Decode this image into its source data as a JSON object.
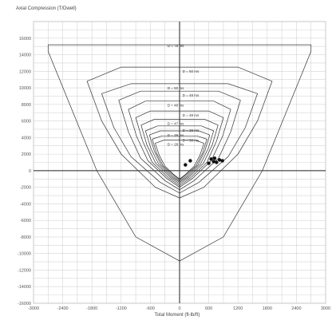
{
  "chart_data": {
    "type": "line",
    "title": "",
    "ylabel": "Axial Compression (T/Dwell)",
    "xlabel": "Total Moment (ft-lb/ft)",
    "xlim": [
      -3000,
      3000
    ],
    "ylim": [
      -16000,
      18000
    ],
    "x_ticks": [
      -3000,
      -2400,
      -1800,
      -1200,
      -600,
      0,
      600,
      1200,
      1800,
      2400,
      3000
    ],
    "y_ticks": [
      -16000,
      -14000,
      -12000,
      -10000,
      -8000,
      -6000,
      -4000,
      -2000,
      0,
      2000,
      4000,
      6000,
      8000,
      10000,
      12000,
      14000,
      16000
    ],
    "grid": true,
    "series": [
      {
        "label": "D = 78 ms",
        "x": [
          -2700,
          2700,
          2700,
          1700,
          900,
          0,
          -900,
          -1700,
          -2700,
          -2700
        ],
        "y": [
          15200,
          15200,
          14400,
          0,
          -8000,
          -10900,
          -8000,
          0,
          14400,
          15200
        ]
      },
      {
        "label": "D = 50 ms",
        "x": [
          -1200,
          1200,
          1900,
          1600,
          1200,
          500,
          0,
          -500,
          -1200,
          -1600,
          -1900,
          -1200
        ],
        "y": [
          12500,
          12500,
          10800,
          6000,
          2000,
          -2000,
          -3300,
          -2000,
          2000,
          6000,
          10800,
          12500
        ]
      },
      {
        "label": "D = 50 ms",
        "x": [
          -1000,
          1000,
          1600,
          1350,
          1000,
          400,
          0,
          -400,
          -1000,
          -1350,
          -1600,
          -1000
        ],
        "y": [
          10500,
          10500,
          9300,
          5200,
          1700,
          -1400,
          -2700,
          -1400,
          1700,
          5200,
          9300,
          10500
        ]
      },
      {
        "label": "D = 48 ms",
        "x": [
          -800,
          800,
          1250,
          1050,
          800,
          300,
          0,
          -300,
          -800,
          -1050,
          -1250,
          -800
        ],
        "y": [
          9600,
          9600,
          8500,
          4700,
          1500,
          -1200,
          -2300,
          -1200,
          1500,
          4700,
          8500,
          9600
        ]
      },
      {
        "label": "D = 48 ms",
        "x": [
          -700,
          700,
          1050,
          880,
          650,
          250,
          0,
          -250,
          -650,
          -880,
          -1050,
          -700
        ],
        "y": [
          8400,
          8400,
          7400,
          4100,
          1200,
          -1000,
          -2000,
          -1000,
          1200,
          4100,
          7400,
          8400
        ]
      },
      {
        "label": "D = 48 ms",
        "x": [
          -600,
          600,
          900,
          760,
          560,
          220,
          0,
          -220,
          -560,
          -760,
          -900,
          -600
        ],
        "y": [
          7200,
          7200,
          6400,
          3600,
          1000,
          -900,
          -1800,
          -900,
          1000,
          3600,
          6400,
          7200
        ]
      },
      {
        "label": "D = 47 ms",
        "x": [
          -520,
          520,
          790,
          670,
          490,
          190,
          0,
          -190,
          -490,
          -670,
          -790,
          -520
        ],
        "y": [
          6200,
          6200,
          5500,
          3100,
          900,
          -800,
          -1600,
          -800,
          900,
          3100,
          5500,
          6200
        ]
      },
      {
        "label": "D = 38 ms",
        "x": [
          -450,
          450,
          700,
          590,
          430,
          170,
          0,
          -170,
          -430,
          -590,
          -700,
          -450
        ],
        "y": [
          5400,
          5400,
          4800,
          2700,
          800,
          -700,
          -1400,
          -700,
          800,
          2700,
          4800,
          5400
        ]
      },
      {
        "label": "D = 38 ms",
        "x": [
          -400,
          400,
          620,
          520,
          380,
          150,
          0,
          -150,
          -380,
          -520,
          -620,
          -400
        ],
        "y": [
          4800,
          4800,
          4300,
          2400,
          700,
          -600,
          -1250,
          -600,
          700,
          2400,
          4300,
          4800
        ]
      },
      {
        "label": "D = 38 ms",
        "x": [
          -360,
          360,
          560,
          470,
          340,
          130,
          0,
          -130,
          -340,
          -470,
          -560,
          -360
        ],
        "y": [
          4200,
          4200,
          3800,
          2100,
          600,
          -500,
          -1100,
          -500,
          600,
          2100,
          3800,
          4200
        ]
      },
      {
        "label": "D = 28 ms",
        "x": [
          -320,
          320,
          500,
          420,
          300,
          120,
          0,
          -120,
          -300,
          -420,
          -500,
          -320
        ],
        "y": [
          3700,
          3700,
          3300,
          1900,
          550,
          -450,
          -1000,
          -450,
          550,
          1900,
          3300,
          3700
        ]
      }
    ],
    "points": [
      {
        "x": 120,
        "y": 700
      },
      {
        "x": 220,
        "y": 1200
      },
      {
        "x": 600,
        "y": 900
      },
      {
        "x": 700,
        "y": 1100
      },
      {
        "x": 760,
        "y": 1000
      },
      {
        "x": 820,
        "y": 1300
      },
      {
        "x": 880,
        "y": 1200
      },
      {
        "x": 650,
        "y": 1400
      },
      {
        "x": 720,
        "y": 1500
      }
    ]
  }
}
